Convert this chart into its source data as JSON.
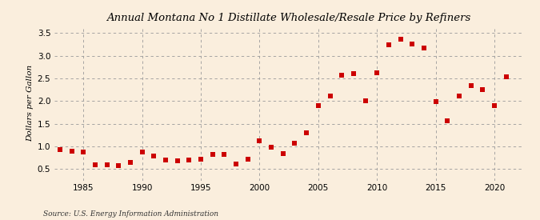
{
  "title": "Annual Montana No 1 Distillate Wholesale/Resale Price by Refiners",
  "ylabel": "Dollars per Gallon",
  "source": "Source: U.S. Energy Information Administration",
  "background_color": "#faeedd",
  "marker_color": "#cc0000",
  "xlim": [
    1982.5,
    2022.5
  ],
  "ylim": [
    0.25,
    3.65
  ],
  "xticks": [
    1985,
    1990,
    1995,
    2000,
    2005,
    2010,
    2015,
    2020
  ],
  "yticks": [
    0.5,
    1.0,
    1.5,
    2.0,
    2.5,
    3.0,
    3.5
  ],
  "years": [
    1983,
    1984,
    1985,
    1986,
    1987,
    1988,
    1989,
    1990,
    1991,
    1992,
    1993,
    1994,
    1995,
    1996,
    1997,
    1998,
    1999,
    2000,
    2001,
    2002,
    2003,
    2004,
    2005,
    2006,
    2007,
    2008,
    2009,
    2010,
    2011,
    2012,
    2013,
    2014,
    2015,
    2016,
    2017,
    2018,
    2019,
    2020,
    2021
  ],
  "values": [
    0.93,
    0.9,
    0.87,
    0.6,
    0.6,
    0.58,
    0.65,
    0.88,
    0.78,
    0.7,
    0.68,
    0.7,
    0.72,
    0.82,
    0.83,
    0.62,
    0.72,
    1.13,
    0.99,
    0.85,
    1.07,
    1.3,
    1.91,
    2.12,
    2.57,
    2.6,
    2.01,
    2.62,
    3.25,
    3.37,
    3.27,
    3.18,
    1.99,
    1.57,
    2.12,
    2.35,
    2.25,
    1.9,
    2.54
  ],
  "title_fontsize": 9.5,
  "ylabel_fontsize": 7.5,
  "tick_fontsize": 7.5,
  "source_fontsize": 6.5,
  "marker_size": 14
}
